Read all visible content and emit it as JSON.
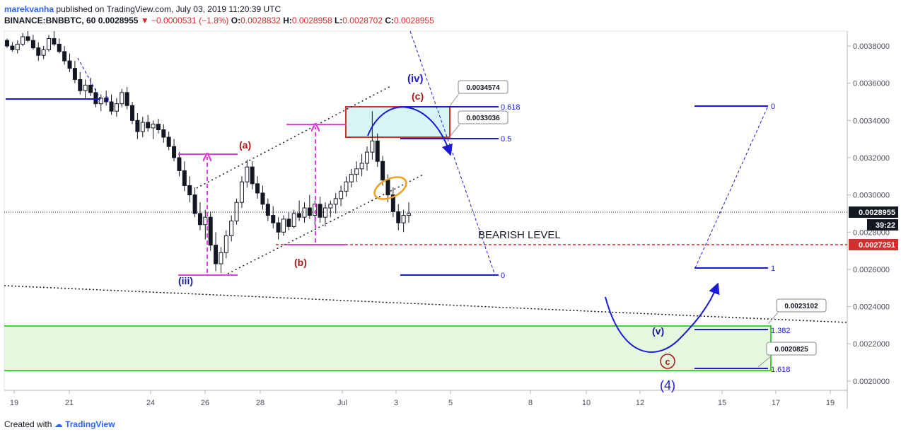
{
  "header": {
    "user": "marekvanha",
    "published": "published on TradingView.com, July 03, 2019 11:20:39 UTC",
    "symbol": "BINANCE:BNBBTC, 60",
    "last": "0.0028955",
    "change": "−0.0000531 (−1.8%)",
    "o_label": "O:",
    "o": "0.0028832",
    "h_label": "H:",
    "h": "0.0028958",
    "l_label": "L:",
    "l": "0.0028702",
    "c_label": "C:",
    "c": "0.0028955"
  },
  "footer": {
    "created": "Created with",
    "brand": "TradingView"
  },
  "colors": {
    "candle": "#131722",
    "wave": "#1a1ad6",
    "magenta": "#e040e0",
    "red": "#d32f2f",
    "cyan_box": "#d6f5f5",
    "green_zone": "#e6f7e0",
    "green_line": "#3cd43c",
    "orange": "#f0a020"
  },
  "chart_data": {
    "type": "candlestick",
    "y_axis": {
      "range": [
        0.00195,
        0.00388
      ],
      "ticks": [
        "0.0020000",
        "0.0022000",
        "0.0024000",
        "0.0026000",
        "0.0028000",
        "0.0030000",
        "0.0032000",
        "0.0034000",
        "0.0036000",
        "0.0038000"
      ],
      "tick_values": [
        0.002,
        0.0022,
        0.0024,
        0.0026,
        0.0028,
        0.003,
        0.0032,
        0.0034,
        0.0036,
        0.0038
      ]
    },
    "x_axis": {
      "ticks": [
        "19",
        "21",
        "24",
        "26",
        "28",
        "Jul",
        "3",
        "5",
        "8",
        "10",
        "12",
        "15",
        "17",
        "19"
      ]
    },
    "price_labels": {
      "current": "0.0028955",
      "countdown": "39:22",
      "bearish": "0.0027251"
    },
    "annotations": {
      "bearish_level": "BEARISH LEVEL",
      "waves": [
        "(iii)",
        "(a)",
        "(b)",
        "(c)",
        "(iv)",
        "(v)",
        "c",
        "(4)"
      ],
      "fib_left": [
        "0",
        "0.618",
        "0.5",
        "0"
      ],
      "fib_right": [
        "0",
        "1",
        "1.382",
        "1.618"
      ],
      "callouts": [
        "0.0034574",
        "0.0033036",
        "0.0023102",
        "0.0020825"
      ]
    },
    "levels": {
      "bearish": 0.0027251,
      "current": 0.0028955,
      "zone_top": 0.002296,
      "zone_bottom": 0.0020575,
      "fib_left_top": 0.00345,
      "fib_left_mid": 0.00329,
      "fib_left_bottom": 0.002568,
      "fib_left_zero_ref": 0.00349
    },
    "candles": [
      [
        0.00383,
        0.00384,
        0.00379,
        0.0038
      ],
      [
        0.0038,
        0.00382,
        0.00377,
        0.00378
      ],
      [
        0.00378,
        0.00383,
        0.00376,
        0.00381
      ],
      [
        0.00381,
        0.00387,
        0.0038,
        0.00385
      ],
      [
        0.00385,
        0.00388,
        0.00382,
        0.00383
      ],
      [
        0.00383,
        0.00386,
        0.00378,
        0.00379
      ],
      [
        0.00379,
        0.00382,
        0.00372,
        0.00375
      ],
      [
        0.00375,
        0.0038,
        0.00373,
        0.00378
      ],
      [
        0.00378,
        0.00386,
        0.00377,
        0.00384
      ],
      [
        0.00384,
        0.00388,
        0.0038,
        0.00381
      ],
      [
        0.00381,
        0.00384,
        0.00376,
        0.00377
      ],
      [
        0.00377,
        0.0038,
        0.0037,
        0.00372
      ],
      [
        0.00372,
        0.00376,
        0.00366,
        0.00368
      ],
      [
        0.00368,
        0.00372,
        0.0036,
        0.00362
      ],
      [
        0.00362,
        0.00366,
        0.00354,
        0.00356
      ],
      [
        0.00356,
        0.00362,
        0.00352,
        0.00359
      ],
      [
        0.00359,
        0.00363,
        0.00353,
        0.00355
      ],
      [
        0.00355,
        0.00357,
        0.00347,
        0.00349
      ],
      [
        0.00349,
        0.00354,
        0.00345,
        0.00352
      ],
      [
        0.00352,
        0.00356,
        0.00348,
        0.0035
      ],
      [
        0.0035,
        0.00354,
        0.00343,
        0.00345
      ],
      [
        0.00345,
        0.00352,
        0.00342,
        0.00349
      ],
      [
        0.00349,
        0.00357,
        0.00347,
        0.00355
      ],
      [
        0.00355,
        0.00358,
        0.00346,
        0.00348
      ],
      [
        0.00348,
        0.0035,
        0.00338,
        0.0034
      ],
      [
        0.0034,
        0.00344,
        0.0033,
        0.00334
      ],
      [
        0.00334,
        0.00342,
        0.00331,
        0.00339
      ],
      [
        0.00339,
        0.00343,
        0.00334,
        0.00336
      ],
      [
        0.00336,
        0.0034,
        0.0033,
        0.00338
      ],
      [
        0.00338,
        0.00341,
        0.00333,
        0.00335
      ],
      [
        0.00335,
        0.00338,
        0.00328,
        0.00331
      ],
      [
        0.00331,
        0.00334,
        0.00324,
        0.00326
      ],
      [
        0.00326,
        0.0033,
        0.00318,
        0.0032
      ],
      [
        0.0032,
        0.00323,
        0.0031,
        0.00313
      ],
      [
        0.00313,
        0.00318,
        0.00302,
        0.00305
      ],
      [
        0.00305,
        0.0031,
        0.00296,
        0.003
      ],
      [
        0.003,
        0.00304,
        0.00288,
        0.0029
      ],
      [
        0.0029,
        0.00296,
        0.00281,
        0.00284
      ],
      [
        0.00284,
        0.00292,
        0.00276,
        0.00288
      ],
      [
        0.00288,
        0.00291,
        0.0027,
        0.00273
      ],
      [
        0.00273,
        0.0028,
        0.00259,
        0.00263
      ],
      [
        0.00263,
        0.00272,
        0.00258,
        0.00269
      ],
      [
        0.00269,
        0.00281,
        0.00266,
        0.00278
      ],
      [
        0.00278,
        0.00289,
        0.00275,
        0.00286
      ],
      [
        0.00286,
        0.00298,
        0.00284,
        0.00296
      ],
      [
        0.00296,
        0.0031,
        0.00293,
        0.00307
      ],
      [
        0.00307,
        0.00319,
        0.00304,
        0.00315
      ],
      [
        0.00315,
        0.00318,
        0.00303,
        0.00306
      ],
      [
        0.00306,
        0.0031,
        0.00298,
        0.00301
      ],
      [
        0.00301,
        0.00305,
        0.00292,
        0.00295
      ],
      [
        0.00295,
        0.00298,
        0.00286,
        0.00289
      ],
      [
        0.00289,
        0.00294,
        0.00282,
        0.00285
      ],
      [
        0.00285,
        0.00288,
        0.00276,
        0.0028
      ],
      [
        0.0028,
        0.00289,
        0.00278,
        0.00287
      ],
      [
        0.00287,
        0.00291,
        0.00281,
        0.00283
      ],
      [
        0.00283,
        0.00292,
        0.00282,
        0.0029
      ],
      [
        0.0029,
        0.00297,
        0.00286,
        0.00288
      ],
      [
        0.00288,
        0.00296,
        0.00285,
        0.00293
      ],
      [
        0.00293,
        0.003,
        0.00287,
        0.00289
      ],
      [
        0.00289,
        0.00297,
        0.00284,
        0.00295
      ],
      [
        0.00295,
        0.00299,
        0.00285,
        0.00288
      ],
      [
        0.00288,
        0.00296,
        0.00283,
        0.00293
      ],
      [
        0.00293,
        0.00297,
        0.00288,
        0.00295
      ],
      [
        0.00295,
        0.00301,
        0.0029,
        0.00298
      ],
      [
        0.00298,
        0.00305,
        0.00294,
        0.00302
      ],
      [
        0.00302,
        0.0031,
        0.00299,
        0.00307
      ],
      [
        0.00307,
        0.00314,
        0.00304,
        0.00311
      ],
      [
        0.00311,
        0.00318,
        0.00307,
        0.00314
      ],
      [
        0.00314,
        0.00322,
        0.0031,
        0.00317
      ],
      [
        0.00317,
        0.00326,
        0.00313,
        0.00323
      ],
      [
        0.00323,
        0.00345,
        0.00319,
        0.00329
      ],
      [
        0.00329,
        0.00333,
        0.00315,
        0.00318
      ],
      [
        0.00318,
        0.00321,
        0.00305,
        0.00308
      ],
      [
        0.00308,
        0.00311,
        0.00296,
        0.003
      ],
      [
        0.003,
        0.00304,
        0.00288,
        0.00291
      ],
      [
        0.00291,
        0.00295,
        0.00281,
        0.00285
      ],
      [
        0.00285,
        0.00292,
        0.0028,
        0.00289
      ],
      [
        0.00289,
        0.00296,
        0.00285,
        0.0029
      ]
    ]
  }
}
